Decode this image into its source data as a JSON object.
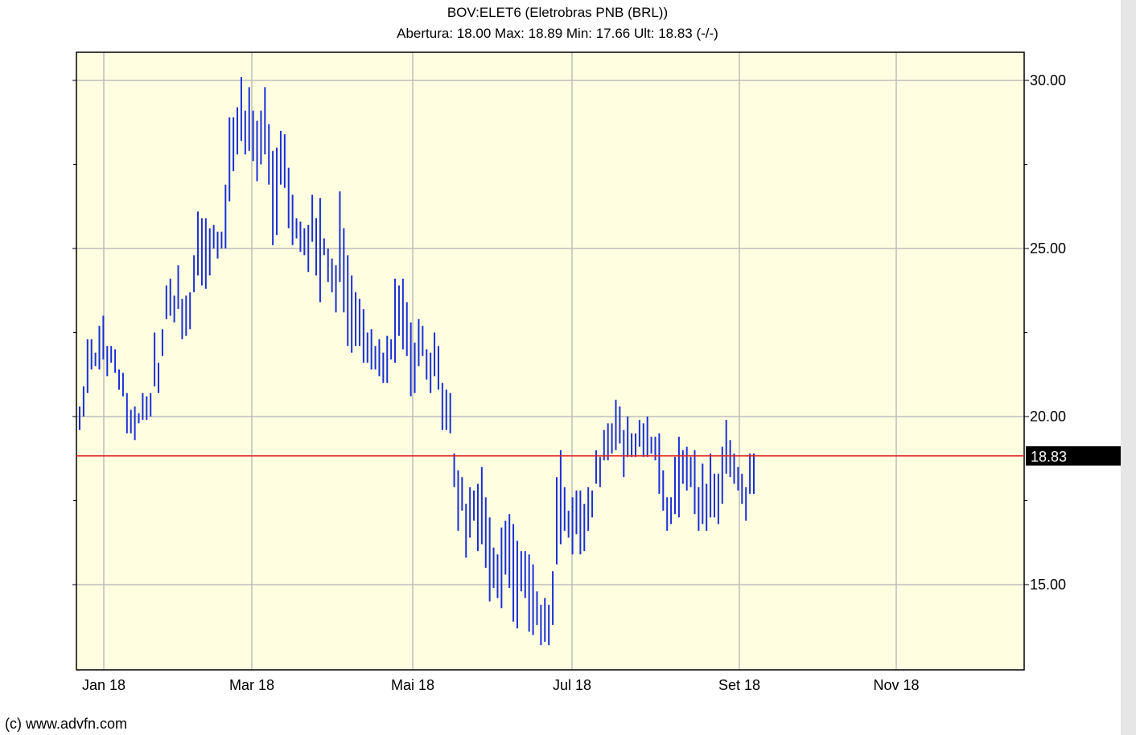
{
  "header": {
    "title": "BOV:ELET6 (Eletrobras PNB (BRL))",
    "subtitle": "Abertura: 18.00 Max: 18.89 Min: 17.66 Ult: 18.83 (-/-)"
  },
  "footer": {
    "credit": "(c) www.advfn.com"
  },
  "colors": {
    "background": "#fffee0",
    "bars": "#1a2fd8",
    "last_line": "#e02020",
    "grid": "#bdbdbd"
  },
  "chart_data": {
    "type": "ohlc-bar",
    "x_axis_ticks": [
      "Jan 18",
      "Mar 18",
      "Mai 18",
      "Jul 18",
      "Set 18",
      "Nov 18"
    ],
    "y_axis_ticks": [
      "30.00",
      "25.00",
      "20.00",
      "15.00"
    ],
    "ylim": [
      12.4,
      31.0
    ],
    "last_value": 18.83,
    "last_label": "18.83",
    "grid": true,
    "bars": [
      [
        19.6,
        20.3
      ],
      [
        20.0,
        20.9
      ],
      [
        20.7,
        22.3
      ],
      [
        21.4,
        22.3
      ],
      [
        21.5,
        21.9
      ],
      [
        21.4,
        22.7
      ],
      [
        21.7,
        23.0
      ],
      [
        21.2,
        22.1
      ],
      [
        21.6,
        22.1
      ],
      [
        21.3,
        22.0
      ],
      [
        20.8,
        21.4
      ],
      [
        20.6,
        21.3
      ],
      [
        19.5,
        20.7
      ],
      [
        19.5,
        20.2
      ],
      [
        19.3,
        20.3
      ],
      [
        19.8,
        20.1
      ],
      [
        19.9,
        20.7
      ],
      [
        19.9,
        20.6
      ],
      [
        20.0,
        20.7
      ],
      [
        20.9,
        22.5
      ],
      [
        20.7,
        21.6
      ],
      [
        21.8,
        22.6
      ],
      [
        22.9,
        23.9
      ],
      [
        23.0,
        24.1
      ],
      [
        22.8,
        23.6
      ],
      [
        23.2,
        24.5
      ],
      [
        22.3,
        23.5
      ],
      [
        22.4,
        23.6
      ],
      [
        22.6,
        23.7
      ],
      [
        23.7,
        24.8
      ],
      [
        24.2,
        26.1
      ],
      [
        23.9,
        25.9
      ],
      [
        23.8,
        25.9
      ],
      [
        24.2,
        25.6
      ],
      [
        25.0,
        25.7
      ],
      [
        24.7,
        25.5
      ],
      [
        25.0,
        25.5
      ],
      [
        25.0,
        26.9
      ],
      [
        26.4,
        28.9
      ],
      [
        27.3,
        28.9
      ],
      [
        27.8,
        29.2
      ],
      [
        28.2,
        30.1
      ],
      [
        27.8,
        29.1
      ],
      [
        27.9,
        29.8
      ],
      [
        27.6,
        29.1
      ],
      [
        27.0,
        28.8
      ],
      [
        27.5,
        29.1
      ],
      [
        27.8,
        29.8
      ],
      [
        26.9,
        28.7
      ],
      [
        25.1,
        27.9
      ],
      [
        25.4,
        28.0
      ],
      [
        26.9,
        28.5
      ],
      [
        26.8,
        28.4
      ],
      [
        25.6,
        27.4
      ],
      [
        25.1,
        26.6
      ],
      [
        25.3,
        25.9
      ],
      [
        24.9,
        25.8
      ],
      [
        24.8,
        25.6
      ],
      [
        24.3,
        25.7
      ],
      [
        25.2,
        26.6
      ],
      [
        24.2,
        25.9
      ],
      [
        23.4,
        26.5
      ],
      [
        24.8,
        25.3
      ],
      [
        24.0,
        25.0
      ],
      [
        23.7,
        24.7
      ],
      [
        23.1,
        24.5
      ],
      [
        24.0,
        26.7
      ],
      [
        23.1,
        25.6
      ],
      [
        22.1,
        24.8
      ],
      [
        21.9,
        24.2
      ],
      [
        22.1,
        23.7
      ],
      [
        22.1,
        23.5
      ],
      [
        21.6,
        23.2
      ],
      [
        21.6,
        22.5
      ],
      [
        21.4,
        22.6
      ],
      [
        21.4,
        22.1
      ],
      [
        21.2,
        22.3
      ],
      [
        21.0,
        21.9
      ],
      [
        21.0,
        22.4
      ],
      [
        21.7,
        22.3
      ],
      [
        21.6,
        24.1
      ],
      [
        22.4,
        23.9
      ],
      [
        22.0,
        24.1
      ],
      [
        21.8,
        23.4
      ],
      [
        20.6,
        22.8
      ],
      [
        20.7,
        22.2
      ],
      [
        21.5,
        22.9
      ],
      [
        21.8,
        22.7
      ],
      [
        21.1,
        22.0
      ],
      [
        20.7,
        21.9
      ],
      [
        21.2,
        22.5
      ],
      [
        20.8,
        22.1
      ],
      [
        19.6,
        21.0
      ],
      [
        19.6,
        20.8
      ],
      [
        19.5,
        20.7
      ],
      [
        17.9,
        18.9
      ],
      [
        16.6,
        18.4
      ],
      [
        17.2,
        18.2
      ],
      [
        15.8,
        17.4
      ],
      [
        16.4,
        17.9
      ],
      [
        16.9,
        17.8
      ],
      [
        16.0,
        18.0
      ],
      [
        16.2,
        18.5
      ],
      [
        15.5,
        17.6
      ],
      [
        14.5,
        17.0
      ],
      [
        14.9,
        16.1
      ],
      [
        14.6,
        15.9
      ],
      [
        14.3,
        16.7
      ],
      [
        15.3,
        16.9
      ],
      [
        14.9,
        17.1
      ],
      [
        13.9,
        16.8
      ],
      [
        13.7,
        16.3
      ],
      [
        14.8,
        16.0
      ],
      [
        14.6,
        16.0
      ],
      [
        13.6,
        15.9
      ],
      [
        13.5,
        15.6
      ],
      [
        13.8,
        14.8
      ],
      [
        13.2,
        14.4
      ],
      [
        13.3,
        14.6
      ],
      [
        13.2,
        14.4
      ],
      [
        13.8,
        15.4
      ],
      [
        15.6,
        18.2
      ],
      [
        16.2,
        19.0
      ],
      [
        16.6,
        17.9
      ],
      [
        16.4,
        17.2
      ],
      [
        15.9,
        17.6
      ],
      [
        16.5,
        17.8
      ],
      [
        15.9,
        17.8
      ],
      [
        16.0,
        17.4
      ],
      [
        16.6,
        17.9
      ],
      [
        17.0,
        17.8
      ],
      [
        18.0,
        19.0
      ],
      [
        17.9,
        18.8
      ],
      [
        18.7,
        19.6
      ],
      [
        18.7,
        19.8
      ],
      [
        18.9,
        19.8
      ],
      [
        19.0,
        20.5
      ],
      [
        19.2,
        20.3
      ],
      [
        18.2,
        19.6
      ],
      [
        18.8,
        20.0
      ],
      [
        18.8,
        19.5
      ],
      [
        18.8,
        19.5
      ],
      [
        19.1,
        19.9
      ],
      [
        18.8,
        19.8
      ],
      [
        18.8,
        20.0
      ],
      [
        18.9,
        19.4
      ],
      [
        18.7,
        19.4
      ],
      [
        17.7,
        19.5
      ],
      [
        17.2,
        18.4
      ],
      [
        16.6,
        17.6
      ],
      [
        16.8,
        17.6
      ],
      [
        17.1,
        18.8
      ],
      [
        17.0,
        19.4
      ],
      [
        18.0,
        19.0
      ],
      [
        17.8,
        19.1
      ],
      [
        17.9,
        18.8
      ],
      [
        17.1,
        19.0
      ],
      [
        16.6,
        17.9
      ],
      [
        16.8,
        18.6
      ],
      [
        16.6,
        18.0
      ],
      [
        17.0,
        18.9
      ],
      [
        17.0,
        18.3
      ],
      [
        16.8,
        18.3
      ],
      [
        17.4,
        19.1
      ],
      [
        18.3,
        19.9
      ],
      [
        18.2,
        19.3
      ],
      [
        18.0,
        18.9
      ],
      [
        17.8,
        18.5
      ],
      [
        17.4,
        18.3
      ],
      [
        16.9,
        17.9
      ],
      [
        17.7,
        18.9
      ],
      [
        17.7,
        18.9
      ]
    ]
  }
}
